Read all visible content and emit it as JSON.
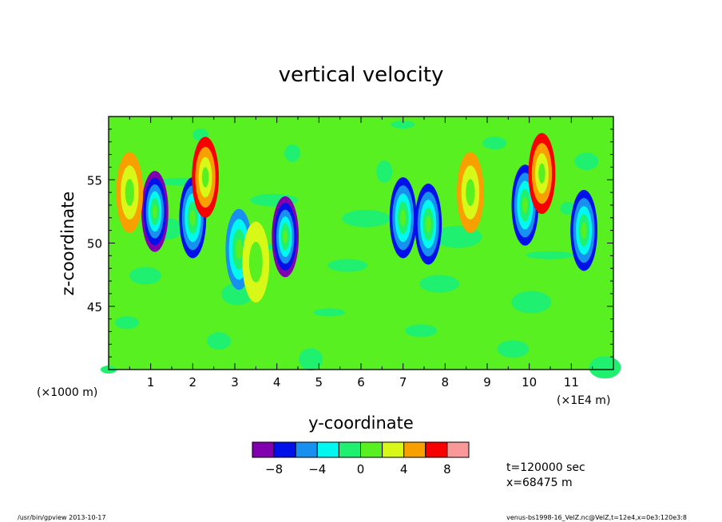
{
  "chart_data": {
    "type": "heatmap",
    "title": "vertical velocity",
    "xlabel": "y-coordinate",
    "ylabel": "z-coordinate",
    "x_unit_left": "(×1000 m)",
    "x_unit_right": "(×1E4 m)",
    "x_ticks": [
      "1",
      "2",
      "3",
      "4",
      "5",
      "6",
      "7",
      "8",
      "9",
      "10",
      "11"
    ],
    "y_ticks": [
      "45",
      "50",
      "55"
    ],
    "xlim": [
      0,
      12
    ],
    "ylim": [
      40,
      60
    ],
    "colorbar": {
      "colors": [
        "#8000b0",
        "#0010e8",
        "#1890f0",
        "#00f8f0",
        "#20f070",
        "#58f020",
        "#d8f818",
        "#f8a000",
        "#f80000",
        "#f89898"
      ],
      "tick_labels": [
        "−8",
        "−4",
        "0",
        "4",
        "8"
      ],
      "tick_values": [
        -8,
        -4,
        0,
        4,
        8
      ],
      "levels": [
        -10,
        -8,
        -6,
        -4,
        -2,
        0,
        2,
        4,
        6,
        8,
        10
      ]
    },
    "features": [
      {
        "y": 1.1,
        "z": 52.5,
        "min": -9
      },
      {
        "y": 2.0,
        "z": 52.0,
        "min": -7
      },
      {
        "y": 3.1,
        "z": 49.5,
        "min": -6
      },
      {
        "y": 4.2,
        "z": 50.5,
        "min": -13
      },
      {
        "y": 7.0,
        "z": 52.0,
        "min": -8
      },
      {
        "y": 7.6,
        "z": 51.5,
        "min": -7
      },
      {
        "y": 9.9,
        "z": 53.0,
        "min": -8
      },
      {
        "y": 11.3,
        "z": 51.0,
        "min": -7
      },
      {
        "y": 0.5,
        "z": 54.0,
        "max": 4
      },
      {
        "y": 2.3,
        "z": 55.2,
        "max": 6
      },
      {
        "y": 8.6,
        "z": 54.0,
        "max": 4
      },
      {
        "y": 10.3,
        "z": 55.5,
        "max": 7
      },
      {
        "y": 3.5,
        "z": 48.5,
        "max": 3
      }
    ]
  },
  "info": {
    "time": "t=120000 sec",
    "position": "x=68475 m"
  },
  "footer": {
    "left": "/usr/bin/gpview  2013-10-17",
    "right": "venus-bs1998-16_VelZ.nc@VelZ,t=12e4,x=0e3:120e3:8"
  }
}
